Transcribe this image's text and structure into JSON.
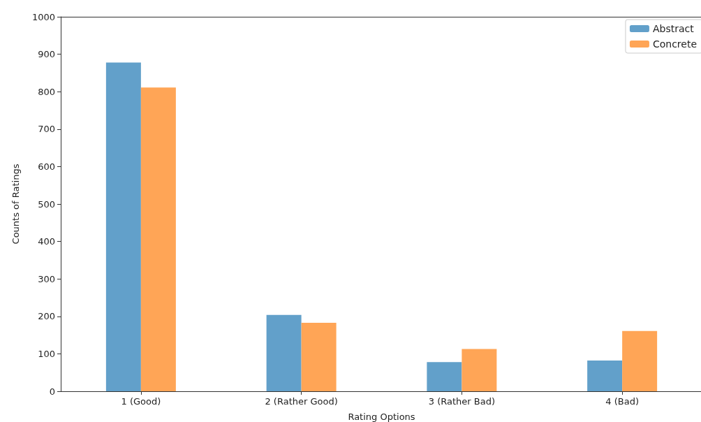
{
  "chart_data": {
    "type": "bar",
    "xlabel": "Rating Options",
    "ylabel": "Counts of Ratings",
    "categories": [
      "1 (Good)",
      "2 (Rather Good)",
      "3 (Rather Bad)",
      "4 (Bad)"
    ],
    "series": [
      {
        "name": "Abstract",
        "color": "#62a0ca",
        "values": [
          878,
          204,
          78,
          82
        ]
      },
      {
        "name": "Concrete",
        "color": "#ffa556",
        "values": [
          811,
          183,
          113,
          161
        ]
      }
    ],
    "ylim": [
      0,
      1000
    ],
    "yticks": [
      0,
      100,
      200,
      300,
      400,
      500,
      600,
      700,
      800,
      900,
      1000
    ],
    "grid": false,
    "legend": "top right"
  }
}
